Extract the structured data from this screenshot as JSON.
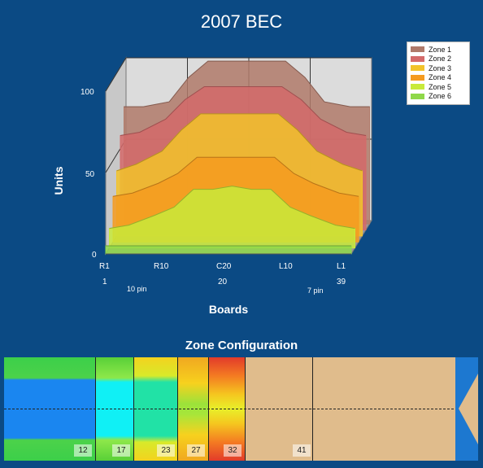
{
  "title": "2007 BEC",
  "chart_data": {
    "type": "area",
    "title": "2007 BEC",
    "xlabel": "Boards",
    "ylabel": "Units",
    "ylim": [
      0,
      100
    ],
    "yticks": [
      "0",
      "50",
      "100"
    ],
    "x_tick_labels": [
      "R1",
      "R10",
      "C20",
      "L10",
      "L1"
    ],
    "x_board_labels": [
      "1",
      "20",
      "39"
    ],
    "x_pin_labels": [
      "10 pin",
      "7 pin"
    ],
    "x": [
      1,
      4,
      8,
      11,
      14,
      17,
      20,
      23,
      26,
      29,
      32,
      36,
      39
    ],
    "series": [
      {
        "name": "Zone 1",
        "color": "#b07a6a",
        "values": [
          72,
          72,
          75,
          90,
          100,
          100,
          100,
          100,
          100,
          90,
          75,
          72,
          72
        ]
      },
      {
        "name": "Zone 2",
        "color": "#d46a6a",
        "values": [
          58,
          60,
          68,
          80,
          88,
          88,
          88,
          88,
          88,
          80,
          68,
          60,
          58
        ]
      },
      {
        "name": "Zone 3",
        "color": "#f2c32a",
        "values": [
          40,
          44,
          52,
          65,
          75,
          75,
          75,
          75,
          75,
          65,
          52,
          44,
          40
        ]
      },
      {
        "name": "Zone 4",
        "color": "#f59b20",
        "values": [
          28,
          30,
          36,
          42,
          52,
          52,
          52,
          52,
          52,
          42,
          36,
          30,
          28
        ]
      },
      {
        "name": "Zone 5",
        "color": "#c8ea3a",
        "values": [
          12,
          14,
          20,
          25,
          36,
          36,
          38,
          36,
          36,
          25,
          20,
          14,
          12
        ]
      },
      {
        "name": "Zone 6",
        "color": "#8fd84a",
        "values": [
          5,
          5,
          5,
          5,
          5,
          5,
          5,
          5,
          5,
          5,
          5,
          5,
          5
        ]
      }
    ],
    "legend_position": "top-right",
    "grid": true
  },
  "zone_config": {
    "title": "Zone Configuration",
    "zones": [
      "12",
      "17",
      "23",
      "27",
      "32",
      "41"
    ]
  }
}
